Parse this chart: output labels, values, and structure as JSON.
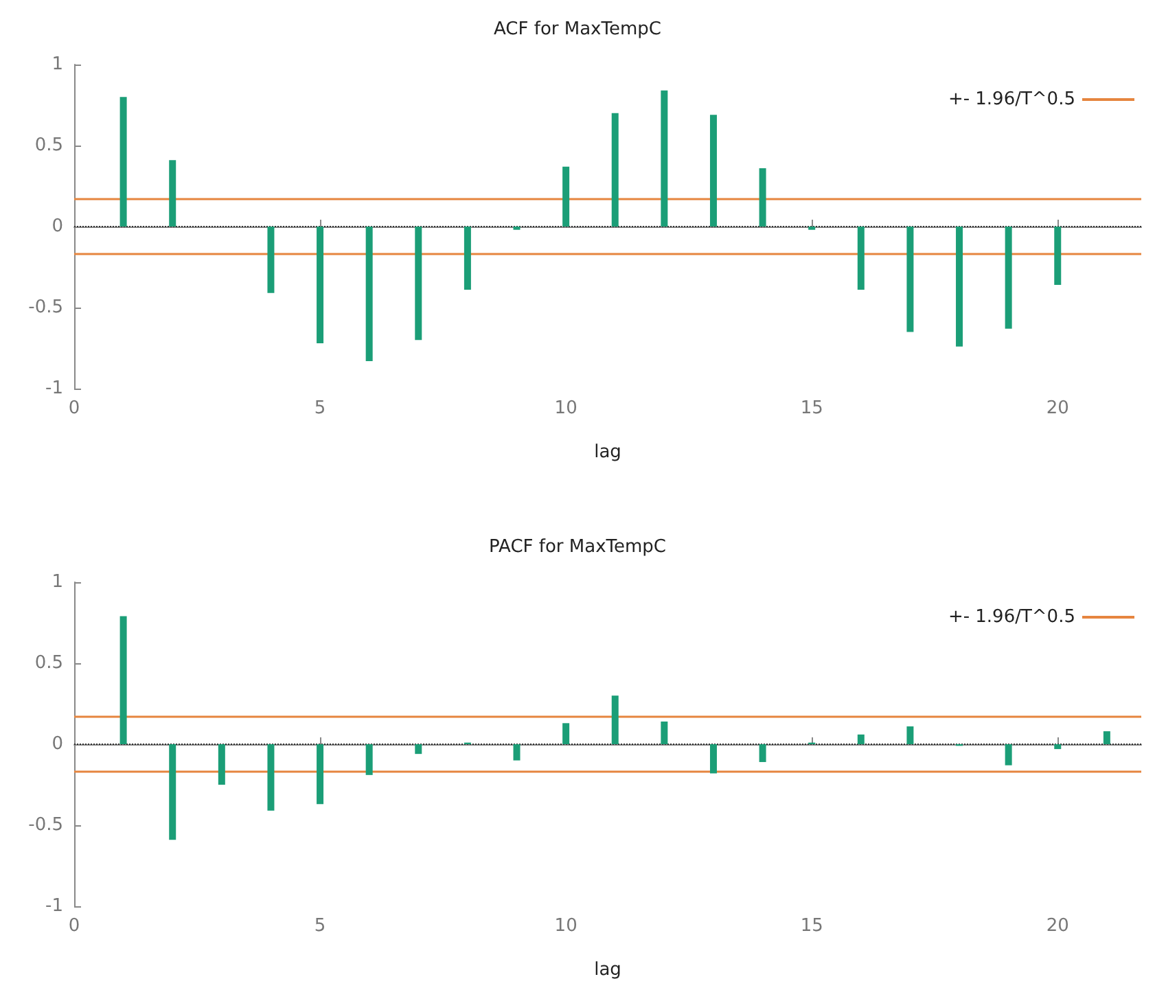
{
  "chart_data": [
    {
      "type": "bar",
      "title": "ACF for MaxTempC",
      "xlabel": "lag",
      "x": [
        1,
        2,
        3,
        4,
        5,
        6,
        7,
        8,
        9,
        10,
        11,
        12,
        13,
        14,
        15,
        16,
        17,
        18,
        19,
        20
      ],
      "series": [
        {
          "color": "#1b9e77",
          "values": [
            0.8,
            0.41,
            0,
            -0.41,
            -0.72,
            -0.83,
            -0.7,
            -0.39,
            -0.02,
            0.37,
            0.7,
            0.84,
            0.69,
            0.36,
            -0.02,
            -0.39,
            -0.65,
            -0.74,
            -0.63,
            -0.36
          ]
        }
      ],
      "xlim": [
        0,
        21.7
      ],
      "xticks": [
        0,
        5,
        10,
        15,
        20
      ],
      "ylim": [
        -1,
        1
      ],
      "yticks": [
        -1,
        -0.5,
        0,
        0.5,
        1
      ],
      "grid": false,
      "legend": "top right",
      "ref_lines": [
        {
          "axis": "y",
          "value": 0.17,
          "label": "+- 1.96/T^0.5",
          "color": "#e6853f"
        },
        {
          "axis": "y",
          "value": -0.17,
          "color": "#e6853f"
        },
        {
          "axis": "y",
          "value": 0,
          "color": "#333333",
          "line_style": "dotted"
        }
      ]
    },
    {
      "type": "bar",
      "title": "PACF for MaxTempC",
      "xlabel": "lag",
      "x": [
        1,
        2,
        3,
        4,
        5,
        6,
        7,
        8,
        9,
        10,
        11,
        12,
        13,
        14,
        15,
        16,
        17,
        18,
        19,
        20,
        21
      ],
      "series": [
        {
          "color": "#1b9e77",
          "values": [
            0.79,
            -0.59,
            -0.25,
            -0.41,
            -0.37,
            -0.19,
            -0.06,
            0.01,
            -0.1,
            0.13,
            0.3,
            0.14,
            -0.18,
            -0.11,
            0.01,
            0.06,
            0.11,
            -0.01,
            -0.13,
            -0.03,
            0.08
          ]
        }
      ],
      "xlim": [
        0,
        21.7
      ],
      "xticks": [
        0,
        5,
        10,
        15,
        20
      ],
      "ylim": [
        -1,
        1
      ],
      "yticks": [
        -1,
        -0.5,
        0,
        0.5,
        1
      ],
      "grid": false,
      "legend": "top right",
      "ref_lines": [
        {
          "axis": "y",
          "value": 0.17,
          "label": "+- 1.96/T^0.5",
          "color": "#e6853f"
        },
        {
          "axis": "y",
          "value": -0.17,
          "color": "#e6853f"
        },
        {
          "axis": "y",
          "value": 0,
          "color": "#333333",
          "line_style": "dotted"
        }
      ]
    }
  ]
}
